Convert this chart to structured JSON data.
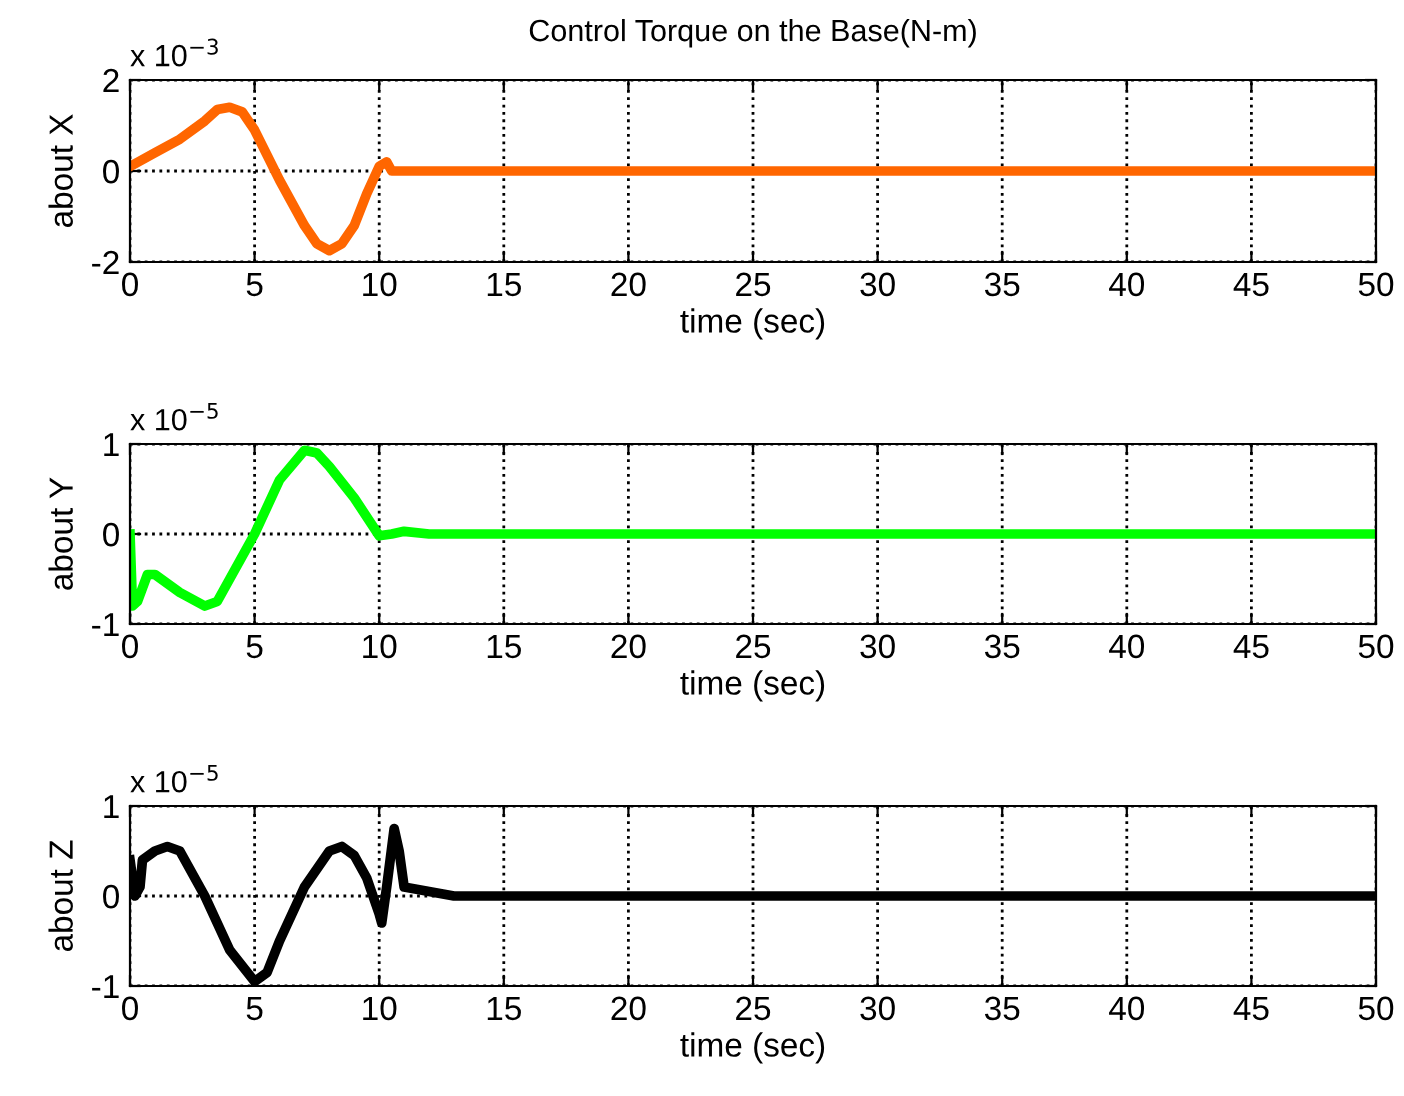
{
  "chart_data": [
    {
      "type": "line",
      "title": "Control Torque on the Base(N-m)",
      "xlabel": "time (sec)",
      "ylabel": "about X",
      "annotations": [
        "x 10$^{−3}$"
      ],
      "x": [
        0,
        1,
        2,
        3,
        3.5,
        4,
        4.5,
        5,
        6,
        7,
        7.5,
        8,
        8.5,
        9,
        9.5,
        10,
        10.3,
        10.5,
        50
      ],
      "series": [
        {
          "color": "#ff6600",
          "values": [
            0.1,
            0.4,
            0.7,
            1.1,
            1.35,
            1.4,
            1.3,
            0.9,
            -0.2,
            -1.2,
            -1.6,
            -1.75,
            -1.6,
            -1.2,
            -0.5,
            0.1,
            0.2,
            0,
            0
          ]
        }
      ],
      "xlim": [
        0,
        50
      ],
      "xticks": [
        0,
        5,
        10,
        15,
        20,
        25,
        30,
        35,
        40,
        45,
        50
      ],
      "ylim": [
        -2,
        2
      ],
      "yticks": [
        -2,
        0,
        2
      ],
      "grid": true,
      "line_style": "solid",
      "marker": "none"
    },
    {
      "type": "line",
      "xlabel": "time (sec)",
      "ylabel": "about Y",
      "annotations": [
        "x 10$^{−5}$"
      ],
      "x": [
        0,
        0.1,
        0.3,
        0.7,
        1,
        2,
        3,
        3.5,
        4,
        5,
        6,
        7,
        7.5,
        8,
        9,
        10,
        10.5,
        11,
        12,
        50
      ],
      "series": [
        {
          "color": "#00ff00",
          "values": [
            0,
            -0.8,
            -0.75,
            -0.45,
            -0.45,
            -0.65,
            -0.8,
            -0.75,
            -0.5,
            0,
            0.6,
            0.93,
            0.9,
            0.75,
            0.4,
            -0.02,
            0,
            0.03,
            0,
            0
          ]
        }
      ],
      "xlim": [
        0,
        50
      ],
      "xticks": [
        0,
        5,
        10,
        15,
        20,
        25,
        30,
        35,
        40,
        45,
        50
      ],
      "ylim": [
        -1,
        1
      ],
      "yticks": [
        -1,
        0,
        1
      ],
      "grid": true,
      "line_style": "solid",
      "marker": "none"
    },
    {
      "type": "line",
      "xlabel": "time (sec)",
      "ylabel": "about Z",
      "annotations": [
        "x 10$^{−5}$"
      ],
      "x": [
        0,
        0.2,
        0.4,
        0.5,
        1,
        1.5,
        2,
        3,
        4,
        5,
        5.5,
        6,
        7,
        8,
        8.5,
        9,
        9.5,
        10,
        10.1,
        10.3,
        10.6,
        10.8,
        11,
        12,
        13,
        50
      ],
      "series": [
        {
          "color": "#000000",
          "values": [
            0.4,
            0,
            0.1,
            0.4,
            0.5,
            0.55,
            0.5,
            0,
            -0.6,
            -0.95,
            -0.85,
            -0.5,
            0.1,
            0.5,
            0.55,
            0.45,
            0.2,
            -0.2,
            -0.3,
            0.1,
            0.75,
            0.5,
            0.1,
            0.05,
            0,
            0
          ]
        }
      ],
      "xlim": [
        0,
        50
      ],
      "xticks": [
        0,
        5,
        10,
        15,
        20,
        25,
        30,
        35,
        40,
        45,
        50
      ],
      "ylim": [
        -1,
        1
      ],
      "yticks": [
        -1,
        0,
        1
      ],
      "grid": true,
      "line_style": "solid",
      "marker": "none"
    }
  ]
}
